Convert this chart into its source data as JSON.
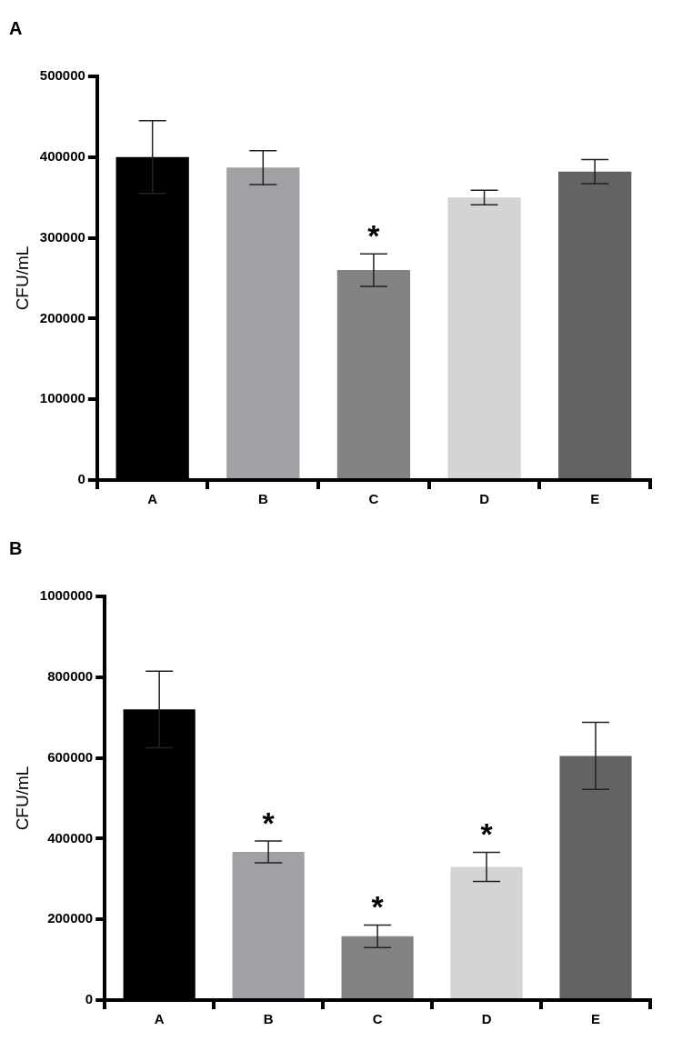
{
  "chart_data": [
    {
      "type": "bar",
      "title": "A",
      "ylabel": "CFU/mL",
      "categories": [
        "A",
        "B",
        "C",
        "D",
        "E"
      ],
      "values": [
        400000,
        387000,
        260000,
        350000,
        382000
      ],
      "errors": [
        45000,
        21000,
        20000,
        9000,
        15000
      ],
      "colors": [
        "#000000",
        "#a0a0a5",
        "#838383",
        "#d4d4d4",
        "#636363"
      ],
      "ylim": [
        0,
        500000
      ],
      "yticks": [
        0,
        100000,
        200000,
        300000,
        400000,
        500000
      ],
      "grid": false,
      "legend": false,
      "annotations": [
        {
          "text": "*",
          "x": "C",
          "y": 280000
        }
      ]
    },
    {
      "type": "bar",
      "title": "B",
      "ylabel": "CFU/mL",
      "categories": [
        "A",
        "B",
        "C",
        "D",
        "E"
      ],
      "values": [
        720000,
        367000,
        158000,
        330000,
        605000
      ],
      "errors": [
        95000,
        27000,
        28000,
        36000,
        83000
      ],
      "colors": [
        "#000000",
        "#a0a0a5",
        "#838383",
        "#d4d4d4",
        "#636363"
      ],
      "ylim": [
        0,
        1000000
      ],
      "yticks": [
        0,
        200000,
        400000,
        600000,
        800000,
        1000000
      ],
      "grid": false,
      "legend": false,
      "annotations": [
        {
          "text": "*",
          "x": "B",
          "y": 394000
        },
        {
          "text": "*",
          "x": "C",
          "y": 186000
        },
        {
          "text": "*",
          "x": "D",
          "y": 366000
        }
      ]
    }
  ]
}
